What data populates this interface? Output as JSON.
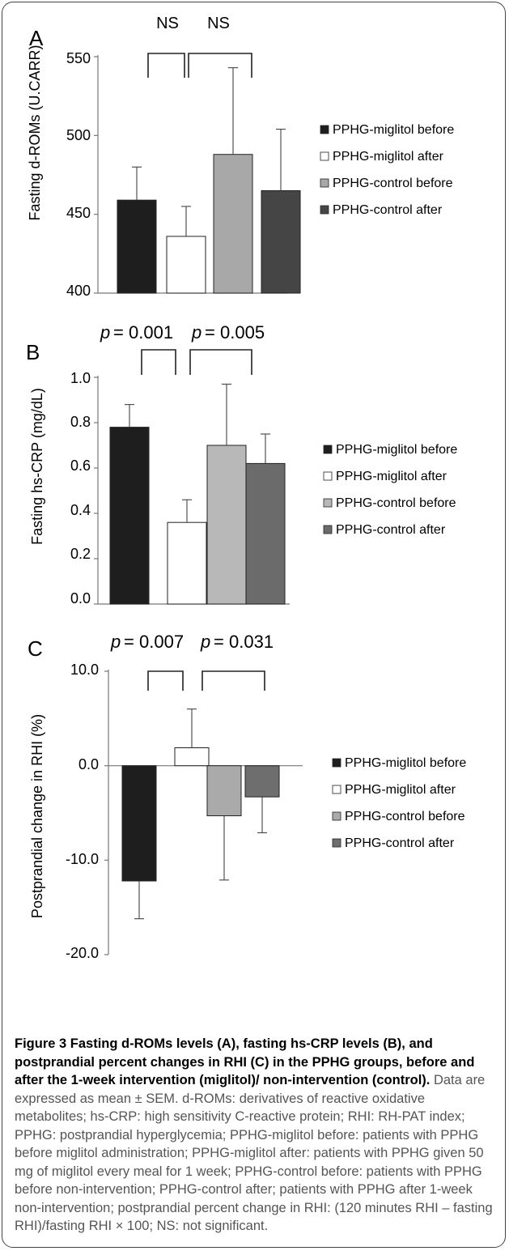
{
  "legend_labels": [
    "PPHG-miglitol before",
    "PPHG-miglitol after",
    "PPHG-control before",
    "PPHG-control after"
  ],
  "chart_data": [
    {
      "type": "bar",
      "panel_label": "A",
      "ylabel": "Fasting d-ROMs (U.CARR)",
      "ylim": [
        400,
        550
      ],
      "yticks": [
        "550",
        "500",
        "450",
        "400"
      ],
      "ytick_values": [
        550,
        500,
        450,
        400
      ],
      "colors": [
        "#1e1e1e",
        "#ffffff",
        "#a8a8a8",
        "#454545"
      ],
      "series": [
        {
          "name": "PPHG-miglitol before",
          "value": 459,
          "error": 21
        },
        {
          "name": "PPHG-miglitol after",
          "value": 436,
          "error": 19
        },
        {
          "name": "PPHG-control before",
          "value": 488,
          "error": 55
        },
        {
          "name": "PPHG-control after",
          "value": 465,
          "error": 39
        }
      ],
      "annotations": [
        "NS",
        "NS"
      ]
    },
    {
      "type": "bar",
      "panel_label": "B",
      "ylabel": "Fasting hs-CRP (mg/dL)",
      "ylim": [
        0,
        1.0
      ],
      "yticks": [
        "1.0",
        "0.8",
        "0.6",
        "0.4",
        "0.2",
        "0.0"
      ],
      "ytick_values": [
        1.0,
        0.8,
        0.6,
        0.4,
        0.2,
        0.0
      ],
      "colors": [
        "#1e1e1e",
        "#ffffff",
        "#b8b8b8",
        "#6b6b6b"
      ],
      "series": [
        {
          "name": "PPHG-miglitol before",
          "value": 0.78,
          "error": 0.1
        },
        {
          "name": "PPHG-miglitol after",
          "value": 0.36,
          "error": 0.1
        },
        {
          "name": "PPHG-control before",
          "value": 0.7,
          "error": 0.27
        },
        {
          "name": "PPHG-control after",
          "value": 0.62,
          "error": 0.13
        }
      ],
      "annotations": [
        "0.001",
        "0.005"
      ]
    },
    {
      "type": "bar",
      "panel_label": "C",
      "ylabel": "Postprandial change in RHI (%)",
      "ylim": [
        -20,
        10
      ],
      "yticks": [
        "10.0",
        "0.0",
        "-10.0",
        "-20.0"
      ],
      "ytick_values": [
        10,
        0,
        -10,
        -20
      ],
      "colors": [
        "#1e1e1e",
        "#ffffff",
        "#aaaaaa",
        "#6e6e6e"
      ],
      "series": [
        {
          "name": "PPHG-miglitol before",
          "value": -12.2,
          "error": 4.0
        },
        {
          "name": "PPHG-miglitol after",
          "value": 1.9,
          "error": 4.1
        },
        {
          "name": "PPHG-control before",
          "value": -5.3,
          "error": 6.8
        },
        {
          "name": "PPHG-control after",
          "value": -3.3,
          "error": 3.8
        }
      ],
      "annotations": [
        "0.007",
        "0.031"
      ]
    }
  ],
  "caption": {
    "title": "Figure 3 Fasting d-ROMs levels (A), fasting hs-CRP levels (B), and postprandial percent changes in RHI (C) in the PPHG groups, before and after the 1-week intervention (miglitol)/ non-intervention (control).",
    "body": "Data are expressed as mean ± SEM. d-ROMs: derivatives of reactive oxidative metabolites; hs-CRP: high sensitivity C-reactive protein; RHI: RH-PAT index; PPHG: postprandial hyperglycemia; PPHG-miglitol before: patients with PPHG before miglitol administration; PPHG-miglitol after: patients with PPHG given 50 mg of miglitol every meal for 1 week; PPHG-control before: patients with PPHG before non-intervention; PPHG-control after; patients with PPHG after 1-week non-intervention; postprandial percent change in RHI: (120 minutes RHI – fasting RHI)/fasting RHI × 100; NS: not significant."
  }
}
